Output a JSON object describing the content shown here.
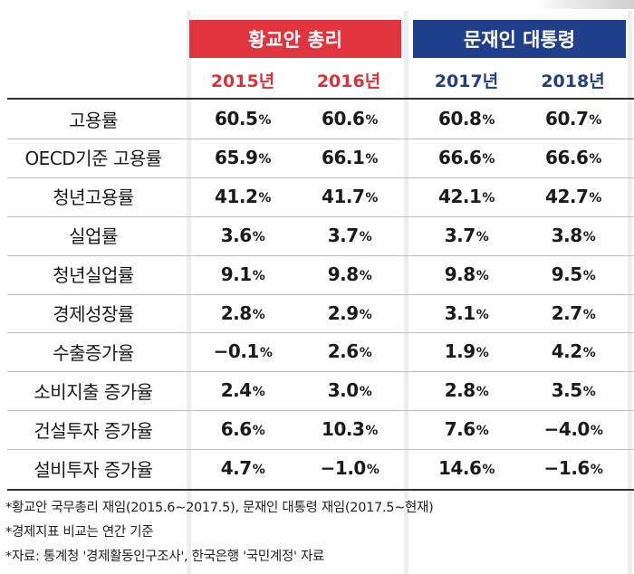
{
  "header": {
    "groups": [
      {
        "label": "황교안 총리",
        "color": "#e0343f"
      },
      {
        "label": "문재인 대통령",
        "color": "#1f3f8c"
      }
    ],
    "years": [
      "2015년",
      "2016년",
      "2017년",
      "2018년"
    ]
  },
  "table": {
    "unit": "%",
    "rows": [
      {
        "label": "고용률",
        "values": [
          "60.5",
          "60.6",
          "60.8",
          "60.7"
        ]
      },
      {
        "label": "OECD기준 고용률",
        "values": [
          "65.9",
          "66.1",
          "66.6",
          "66.6"
        ]
      },
      {
        "label": "청년고용률",
        "values": [
          "41.2",
          "41.7",
          "42.1",
          "42.7"
        ]
      },
      {
        "label": "실업률",
        "values": [
          "3.6",
          "3.7",
          "3.7",
          "3.8"
        ]
      },
      {
        "label": "청년실업률",
        "values": [
          "9.1",
          "9.8",
          "9.8",
          "9.5"
        ]
      },
      {
        "label": "경제성장률",
        "values": [
          "2.8",
          "2.9",
          "3.1",
          "2.7"
        ]
      },
      {
        "label": "수출증가율",
        "values": [
          "−0.1",
          "2.6",
          "1.9",
          "4.2"
        ]
      },
      {
        "label": "소비지출 증가율",
        "values": [
          "2.4",
          "3.0",
          "2.8",
          "3.5"
        ]
      },
      {
        "label": "건설투자 증가율",
        "values": [
          "6.6",
          "10.3",
          "7.6",
          "−4.0"
        ]
      },
      {
        "label": "설비투자 증가율",
        "values": [
          "4.7",
          "−1.0",
          "14.6",
          "−1.6"
        ]
      }
    ]
  },
  "notes": [
    "*황교안 국무총리 재임(2015.6∼2017.5), 문재인 대통령 재임(2017.5∼현재)",
    "*경제지표 비교는 연간 기준",
    "*자료: 통계청 '경제활동인구조사', 한국은행 '국민계정' 자료"
  ]
}
